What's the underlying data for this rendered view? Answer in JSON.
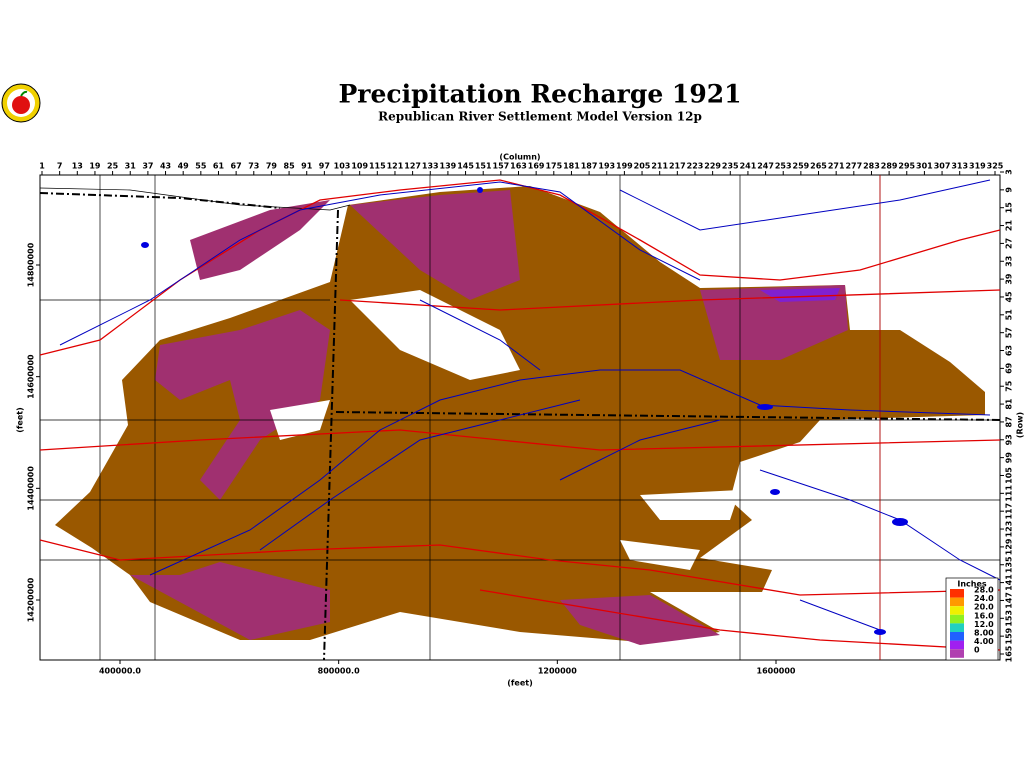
{
  "title": "Precipitation Recharge 1921",
  "subtitle": "Republican River Settlement Model Version 12p",
  "map": {
    "column_label": "(Column)",
    "column_ticks": [
      1,
      7,
      13,
      19,
      25,
      31,
      37,
      43,
      49,
      55,
      61,
      67,
      73,
      79,
      85,
      91,
      97,
      103,
      109,
      115,
      121,
      127,
      133,
      139,
      145,
      151,
      157,
      163,
      169,
      175,
      181,
      187,
      193,
      199,
      205,
      211,
      217,
      223,
      229,
      235,
      241,
      247,
      253,
      259,
      265,
      271,
      277,
      283,
      289,
      295,
      301,
      307,
      313,
      319,
      325
    ],
    "row_label": "(Row)",
    "row_ticks": [
      3,
      9,
      15,
      21,
      27,
      33,
      39,
      45,
      51,
      57,
      63,
      69,
      75,
      81,
      87,
      93,
      99,
      105,
      111,
      117,
      123,
      129,
      135,
      141,
      147,
      153,
      159,
      165
    ],
    "x_label": "(feet)",
    "x_ticks": [
      {
        "value": 400000,
        "label": "400000.0"
      },
      {
        "value": 800000,
        "label": "800000.0"
      },
      1200000,
      1600000
    ],
    "y_label": "(feet)",
    "y_ticks": [
      14800000,
      14600000,
      14400000,
      14200000
    ]
  },
  "legend": {
    "title": "Inches",
    "labels": [
      "28.0",
      "24.0",
      "20.0",
      "16.0",
      "12.0",
      "8.00",
      "4.00",
      "0"
    ],
    "colors": [
      "#ff3000",
      "#ff9900",
      "#f0f000",
      "#90f020",
      "#20d0c0",
      "#2060ff",
      "#a020f0",
      "#b040b0"
    ]
  }
}
